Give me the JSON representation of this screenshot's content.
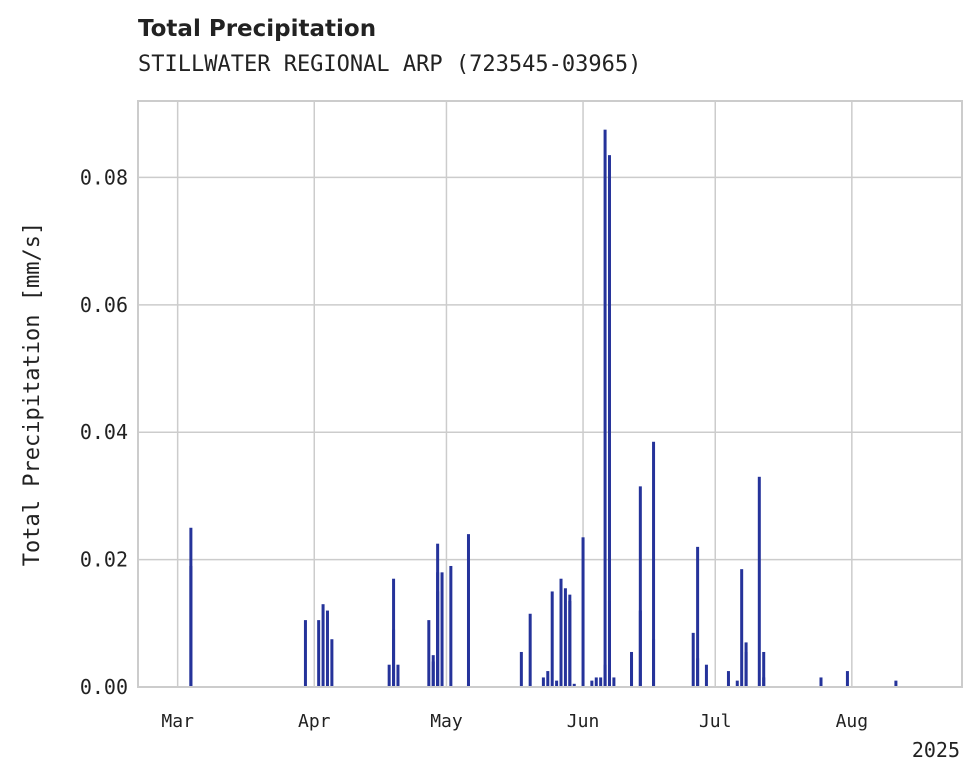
{
  "chart_data": {
    "type": "bar",
    "title": "Total Precipitation",
    "subtitle": "STILLWATER REGIONAL ARP (723545-03965)",
    "xlabel": "",
    "ylabel": "Total Precipitation [mm/s]",
    "ylim": [
      0,
      0.092
    ],
    "yticks": [
      {
        "value": 0.0,
        "label": "0.00"
      },
      {
        "value": 0.02,
        "label": "0.02"
      },
      {
        "value": 0.04,
        "label": "0.04"
      },
      {
        "value": 0.06,
        "label": "0.06"
      },
      {
        "value": 0.08,
        "label": "0.08"
      }
    ],
    "xlim": [
      "2025-02-20",
      "2025-08-26"
    ],
    "xticks": [
      {
        "date": "2025-03-01",
        "label": "Mar"
      },
      {
        "date": "2025-04-01",
        "label": "Apr"
      },
      {
        "date": "2025-05-01",
        "label": "May"
      },
      {
        "date": "2025-06-01",
        "label": "Jun"
      },
      {
        "date": "2025-07-01",
        "label": "Jul"
      },
      {
        "date": "2025-08-01",
        "label": "Aug"
      }
    ],
    "year_label": "2025",
    "grid": true,
    "bar_color": "#25339a",
    "x": [
      "2025-03-04",
      "2025-03-04",
      "2025-03-30",
      "2025-04-02",
      "2025-04-03",
      "2025-04-04",
      "2025-04-05",
      "2025-04-18",
      "2025-04-19",
      "2025-04-19",
      "2025-04-20",
      "2025-04-20",
      "2025-04-27",
      "2025-04-28",
      "2025-04-28",
      "2025-04-29",
      "2025-04-29",
      "2025-04-29",
      "2025-04-30",
      "2025-05-02",
      "2025-05-06",
      "2025-05-06",
      "2025-05-18",
      "2025-05-20",
      "2025-05-23",
      "2025-05-24",
      "2025-05-25",
      "2025-05-26",
      "2025-05-27",
      "2025-05-28",
      "2025-05-29",
      "2025-05-29",
      "2025-05-30",
      "2025-06-01",
      "2025-06-03",
      "2025-06-04",
      "2025-06-05",
      "2025-06-06",
      "2025-06-06",
      "2025-06-07",
      "2025-06-07",
      "2025-06-08",
      "2025-06-12",
      "2025-06-12",
      "2025-06-14",
      "2025-06-14",
      "2025-06-17",
      "2025-06-17",
      "2025-06-26",
      "2025-06-27",
      "2025-06-27",
      "2025-06-29",
      "2025-07-04",
      "2025-07-06",
      "2025-07-07",
      "2025-07-08",
      "2025-07-08",
      "2025-07-11",
      "2025-07-12",
      "2025-07-12",
      "2025-07-25",
      "2025-07-31",
      "2025-08-11"
    ],
    "values": [
      0.025,
      0.019,
      0.0105,
      0.0105,
      0.013,
      0.012,
      0.0075,
      0.0035,
      0.017,
      0.009,
      0.0035,
      0.0015,
      0.0105,
      0.004,
      0.005,
      0.0225,
      0.015,
      0.018,
      0.018,
      0.019,
      0.024,
      0.0005,
      0.0055,
      0.0115,
      0.0015,
      0.0025,
      0.015,
      0.001,
      0.017,
      0.0155,
      0.0135,
      0.0145,
      0.0005,
      0.0235,
      0.001,
      0.0015,
      0.0015,
      0.0035,
      0.0875,
      0.0835,
      0.0135,
      0.0015,
      0.0045,
      0.0055,
      0.0315,
      0.012,
      0.0385,
      0.0075,
      0.0085,
      0.022,
      0.0045,
      0.0035,
      0.0025,
      0.001,
      0.0185,
      0.0055,
      0.007,
      0.033,
      0.0055,
      0.0015,
      0.0015,
      0.0025,
      0.001
    ]
  }
}
